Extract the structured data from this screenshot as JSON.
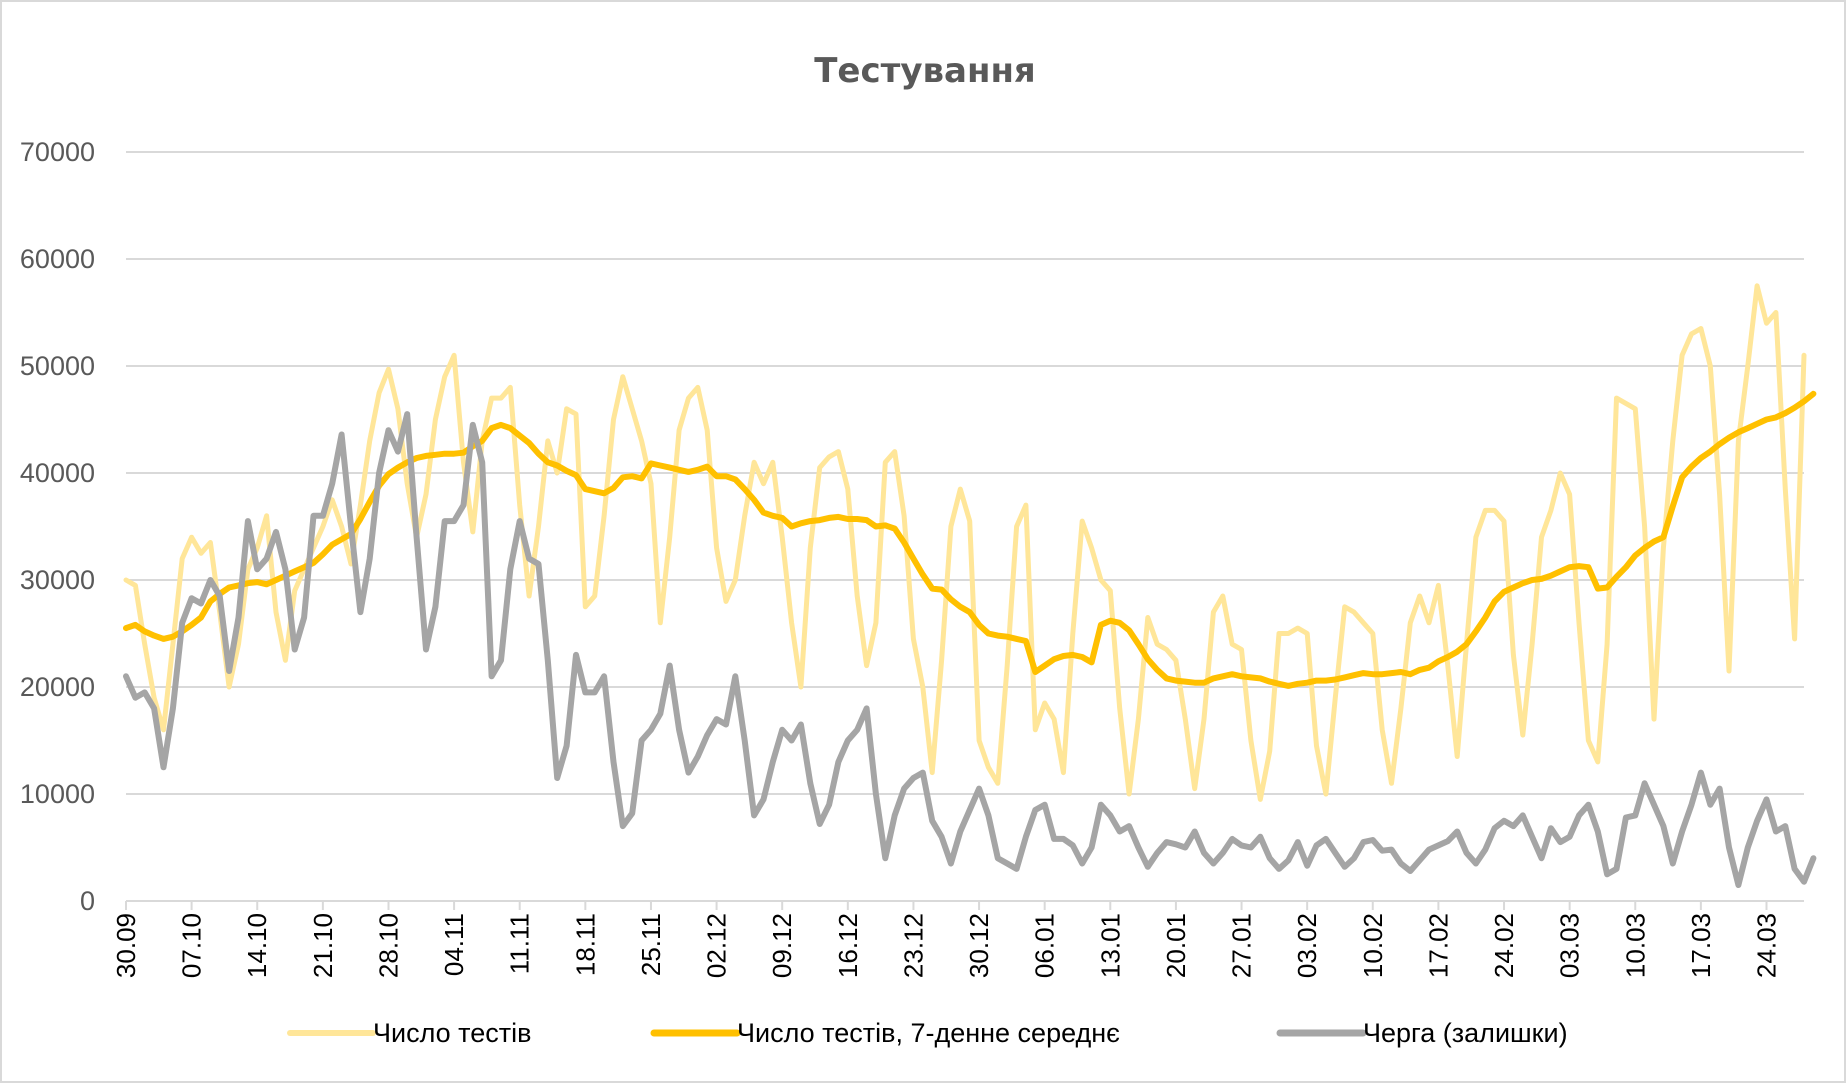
{
  "colors": {
    "tests": "#ffe699",
    "tests_avg": "#ffc000",
    "queue": "#a5a5a5",
    "grid": "#d9d9d9",
    "axis_text": "#595959"
  },
  "chart_data": {
    "type": "line",
    "title": "Тестування",
    "ylim": [
      0,
      70000
    ],
    "yticks": [
      "0",
      "10000",
      "20000",
      "30000",
      "40000",
      "50000",
      "60000",
      "70000"
    ],
    "ytick_values": [
      0,
      10000,
      20000,
      30000,
      40000,
      50000,
      60000,
      70000
    ],
    "x_tick_labels": [
      "30.09",
      "07.10",
      "14.10",
      "21.10",
      "28.10",
      "04.11",
      "11.11",
      "18.11",
      "25.11",
      "02.12",
      "09.12",
      "16.12",
      "23.12",
      "30.12",
      "06.01",
      "13.01",
      "20.01",
      "27.01",
      "03.02",
      "10.02",
      "17.02",
      "24.02",
      "03.03",
      "10.03",
      "17.03",
      "24.03"
    ],
    "x_tick_step_days": 7,
    "grid": true,
    "legend": "bottom",
    "series": [
      {
        "name": "Число тестів",
        "color_key": "tests",
        "values": [
          30000,
          29500,
          24000,
          19000,
          16000,
          24000,
          32000,
          34000,
          32500,
          33500,
          27000,
          20000,
          24000,
          31000,
          33000,
          36000,
          27000,
          22500,
          29000,
          31000,
          33000,
          35000,
          37500,
          35000,
          31500,
          37000,
          43000,
          47500,
          49700,
          46000,
          39000,
          34000,
          38000,
          45000,
          49000,
          51000,
          41000,
          34500,
          43000,
          47000,
          47000,
          48000,
          37000,
          28500,
          35000,
          43000,
          40000,
          46000,
          45500,
          27500,
          28500,
          36000,
          45000,
          49000,
          46000,
          43000,
          39000,
          26000,
          34000,
          44000,
          47000,
          48000,
          44000,
          33000,
          28000,
          30000,
          36000,
          41000,
          39000,
          41000,
          34000,
          26000,
          20000,
          33000,
          40500,
          41500,
          42000,
          38500,
          28500,
          22000,
          26000,
          41000,
          42000,
          36000,
          24500,
          20000,
          12000,
          22500,
          35000,
          38500,
          35500,
          15000,
          12500,
          11000,
          22000,
          35000,
          37000,
          16000,
          18500,
          17000,
          12000,
          25000,
          35500,
          33000,
          30000,
          29000,
          18000,
          10000,
          17000,
          26500,
          24000,
          23500,
          22500,
          17000,
          10500,
          17000,
          27000,
          28500,
          24000,
          23500,
          15000,
          9500,
          14000,
          25000,
          25000,
          25500,
          25000,
          14500,
          10000,
          19000,
          27500,
          27000,
          26000,
          25000,
          16000,
          11000,
          18000,
          26000,
          28500,
          26000,
          29500,
          22000,
          13500,
          24000,
          34000,
          36500,
          36500,
          35500,
          23000,
          15500,
          24000,
          34000,
          36500,
          40000,
          38000,
          26000,
          15000,
          13000,
          24000,
          47000,
          46500,
          46000,
          35000,
          17000,
          33000,
          43000,
          51000,
          53000,
          53500,
          50000,
          38000,
          21500,
          43000,
          50000,
          57500,
          54000,
          55000,
          38500,
          24500,
          51000
        ]
      },
      {
        "name": "Число тестів, 7-денне середнє",
        "color_key": "tests_avg",
        "values": [
          25500,
          25800,
          25200,
          24800,
          24500,
          24700,
          25200,
          25800,
          26500,
          28000,
          28700,
          29300,
          29500,
          29700,
          29800,
          29600,
          30000,
          30400,
          30800,
          31200,
          31600,
          32400,
          33300,
          33800,
          34300,
          35700,
          37300,
          38800,
          39900,
          40500,
          41000,
          41400,
          41600,
          41700,
          41800,
          41800,
          41900,
          42500,
          43000,
          44200,
          44500,
          44200,
          43500,
          42800,
          41800,
          41000,
          40700,
          40200,
          39800,
          38500,
          38300,
          38100,
          38600,
          39600,
          39700,
          39500,
          40900,
          40700,
          40500,
          40300,
          40100,
          40300,
          40600,
          39700,
          39700,
          39400,
          38500,
          37500,
          36300,
          36000,
          35800,
          35000,
          35300,
          35500,
          35600,
          35800,
          35900,
          35700,
          35700,
          35600,
          35000,
          35100,
          34800,
          33500,
          32000,
          30500,
          29200,
          29100,
          28200,
          27500,
          27000,
          25800,
          25000,
          24800,
          24700,
          24500,
          24300,
          21400,
          22000,
          22600,
          22900,
          23000,
          22800,
          22300,
          25800,
          26200,
          26000,
          25300,
          24000,
          22600,
          21600,
          20800,
          20600,
          20500,
          20400,
          20400,
          20800,
          21000,
          21200,
          21000,
          20900,
          20800,
          20500,
          20300,
          20100,
          20300,
          20400,
          20600,
          20600,
          20700,
          20900,
          21100,
          21300,
          21200,
          21200,
          21300,
          21400,
          21200,
          21600,
          21800,
          22400,
          22800,
          23300,
          24000,
          25200,
          26500,
          28000,
          28900,
          29300,
          29700,
          30000,
          30100,
          30400,
          30800,
          31200,
          31300,
          31200,
          29200,
          29300,
          30300,
          31200,
          32300,
          33000,
          33600,
          34000,
          36900,
          39600,
          40600,
          41400,
          42000,
          42700,
          43300,
          43800,
          44200,
          44600,
          45000,
          45200,
          45600,
          46100,
          46700,
          47400
        ]
      },
      {
        "name": "Черга (залишки)",
        "color_key": "queue",
        "values": [
          21000,
          19000,
          19500,
          18000,
          12500,
          18000,
          26000,
          28300,
          27800,
          30000,
          28500,
          21500,
          26500,
          35500,
          31000,
          32000,
          34500,
          31000,
          23500,
          26500,
          36000,
          36000,
          39000,
          43600,
          35000,
          27000,
          32000,
          40000,
          44000,
          42000,
          45500,
          34000,
          23500,
          27500,
          35500,
          35500,
          37000,
          44500,
          41000,
          21000,
          22500,
          31000,
          35500,
          32000,
          31500,
          22500,
          11500,
          14500,
          23000,
          19500,
          19500,
          21000,
          13000,
          7000,
          8200,
          15000,
          16000,
          17500,
          22000,
          16000,
          12000,
          13500,
          15500,
          17000,
          16500,
          21000,
          15000,
          8000,
          9500,
          13000,
          16000,
          15000,
          16500,
          11000,
          7200,
          9000,
          13000,
          15000,
          16000,
          18000,
          10000,
          4000,
          8000,
          10500,
          11500,
          12000,
          7500,
          6000,
          3500,
          6500,
          8500,
          10500,
          8000,
          4000,
          3500,
          3000,
          6000,
          8500,
          9000,
          5800,
          5800,
          5200,
          3500,
          5000,
          9000,
          8000,
          6500,
          7000,
          5000,
          3200,
          4500,
          5500,
          5300,
          5000,
          6500,
          4500,
          3500,
          4500,
          5800,
          5200,
          5000,
          6000,
          4000,
          3000,
          3800,
          5500,
          3300,
          5200,
          5800,
          4500,
          3200,
          4000,
          5500,
          5700,
          4700,
          4800,
          3500,
          2800,
          3800,
          4800,
          5200,
          5600,
          6500,
          4500,
          3500,
          4800,
          6800,
          7500,
          7000,
          8000,
          6000,
          4000,
          6800,
          5500,
          6000,
          8000,
          9000,
          6500,
          2500,
          3000,
          7800,
          8000,
          11000,
          9000,
          7000,
          3500,
          6500,
          9000,
          12000,
          9000,
          10500,
          5000,
          1500,
          5000,
          7500,
          9500,
          6500,
          7000,
          3000,
          1800,
          4000
        ]
      }
    ]
  }
}
